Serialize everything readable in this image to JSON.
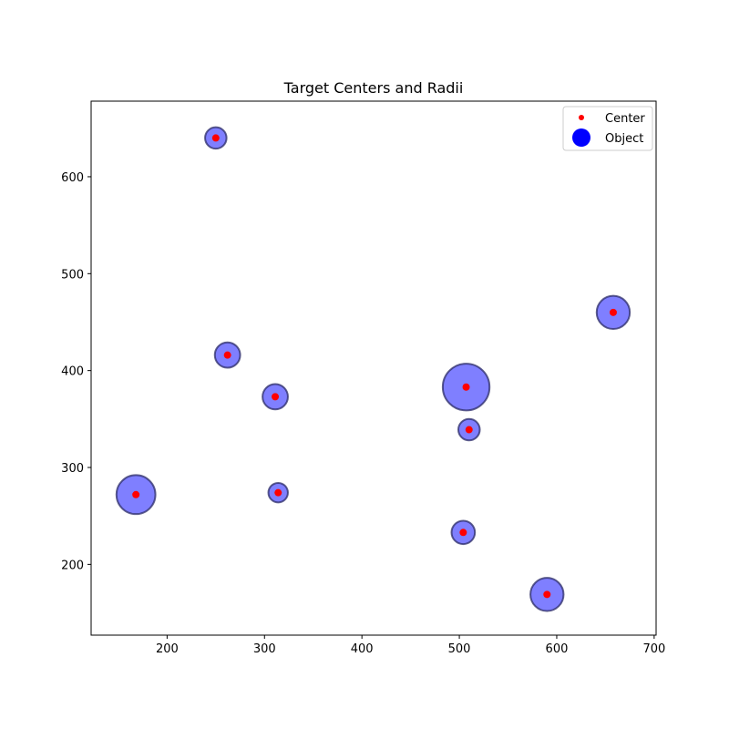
{
  "chart_data": {
    "type": "scatter",
    "title": "Target Centers and Radii",
    "xlabel": "",
    "ylabel": "",
    "xlim": [
      122,
      702
    ],
    "ylim": [
      127,
      678
    ],
    "xticks": [
      200,
      300,
      400,
      500,
      600,
      700
    ],
    "yticks": [
      200,
      300,
      400,
      500,
      600
    ],
    "grid": false,
    "legend_placement": "upper right",
    "colors": {
      "center": "#ff0000",
      "object_fill": "#0000ff",
      "object_alpha": 0.5,
      "object_edge": "#2a2a66"
    },
    "legend": [
      {
        "label": "Center",
        "marker": "small-dot",
        "color": "#ff0000"
      },
      {
        "label": "Object",
        "marker": "large-dot",
        "color": "#0000ff"
      }
    ],
    "points": [
      {
        "x": 250,
        "y": 640,
        "r": 11
      },
      {
        "x": 658,
        "y": 460,
        "r": 17
      },
      {
        "x": 262,
        "y": 416,
        "r": 13
      },
      {
        "x": 311,
        "y": 373,
        "r": 13
      },
      {
        "x": 507,
        "y": 383,
        "r": 24
      },
      {
        "x": 510,
        "y": 339,
        "r": 11
      },
      {
        "x": 168,
        "y": 272,
        "r": 20
      },
      {
        "x": 314,
        "y": 274,
        "r": 10
      },
      {
        "x": 504,
        "y": 233,
        "r": 12
      },
      {
        "x": 590,
        "y": 169,
        "r": 17
      }
    ]
  }
}
